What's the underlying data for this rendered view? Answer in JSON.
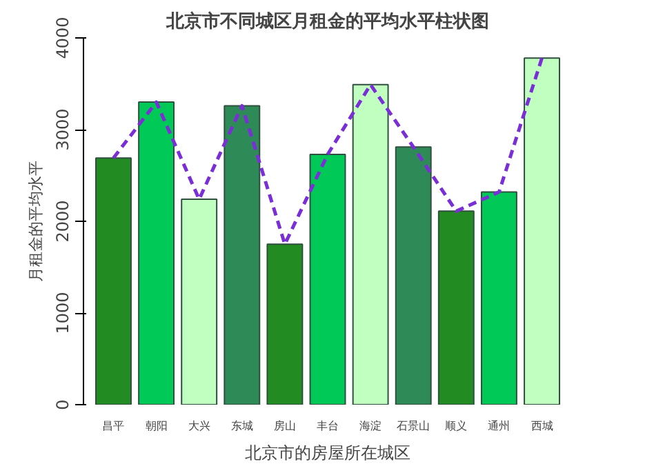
{
  "chart_data": {
    "type": "bar",
    "title": "北京市不同城区月租金的平均水平柱状图",
    "xlabel": "北京市的房屋所在城区",
    "ylabel": "月租金的平均水平",
    "categories": [
      "昌平",
      "朝阳",
      "大兴",
      "东城",
      "房山",
      "丰台",
      "海淀",
      "石景山",
      "顺义",
      "通州",
      "西城"
    ],
    "series": [
      {
        "colors": [
          "#228b22",
          "#00c957",
          "#c1ffc1",
          "#2e8b57",
          "#228b22",
          "#00c957",
          "#c1ffc1",
          "#2e8b57",
          "#228b22",
          "#00c957",
          "#c1ffc1"
        ],
        "values": [
          2690,
          3300,
          2240,
          3260,
          1750,
          2730,
          3490,
          2810,
          2110,
          2320,
          3780
        ]
      },
      {
        "type": "line",
        "color": "#7a2fd6",
        "line_style": "dashed",
        "values": [
          2690,
          3300,
          2240,
          3260,
          1750,
          2730,
          3490,
          2810,
          2110,
          2320,
          3780
        ]
      }
    ],
    "ylim": [
      0,
      4000
    ],
    "yticks": [
      0,
      1000,
      2000,
      3000,
      4000
    ],
    "grid": false
  }
}
